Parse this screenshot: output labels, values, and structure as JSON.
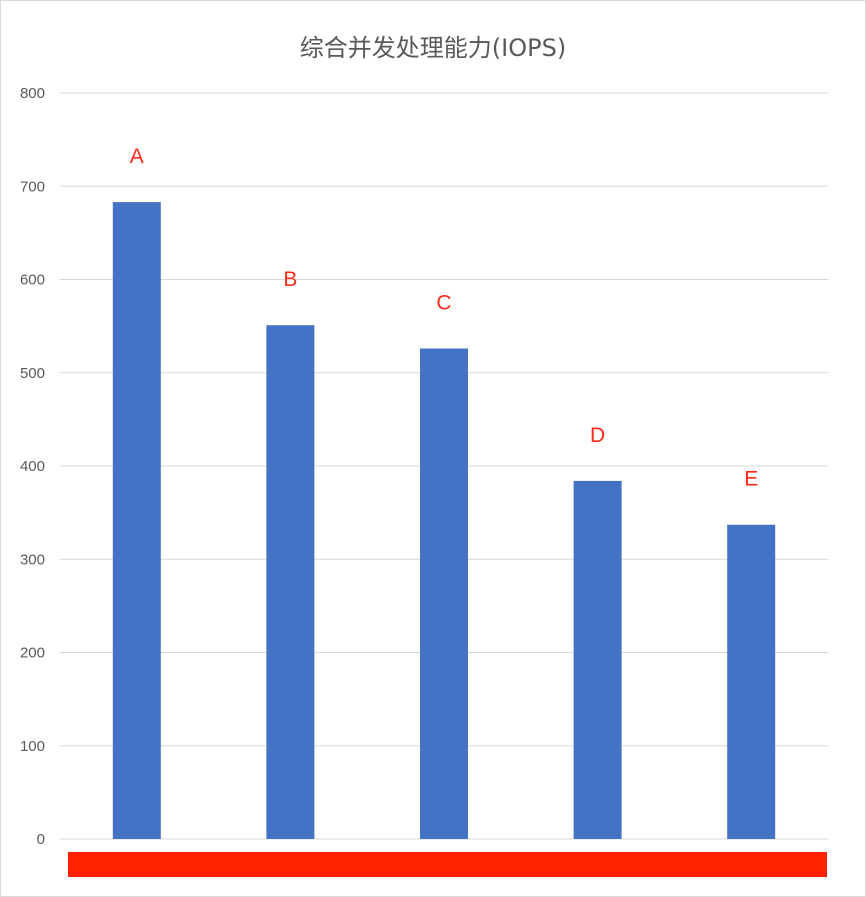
{
  "chart_data": {
    "type": "bar",
    "title": "综合并发处理能力(IOPS)",
    "xlabel": "",
    "ylabel": "",
    "categories": [
      "A",
      "B",
      "C",
      "D",
      "E"
    ],
    "values": [
      683,
      551,
      526,
      384,
      337
    ],
    "data_labels": [
      "A",
      "B",
      "C",
      "D",
      "E"
    ],
    "yticks": [
      "0",
      "100",
      "200",
      "300",
      "400",
      "500",
      "600",
      "700",
      "800"
    ],
    "ylim": [
      0,
      800
    ],
    "grid": true,
    "legend": "none",
    "bar_color": "#4472c4",
    "label_color": "#ff2a1a",
    "gridline_color": "#d9d9d9"
  }
}
